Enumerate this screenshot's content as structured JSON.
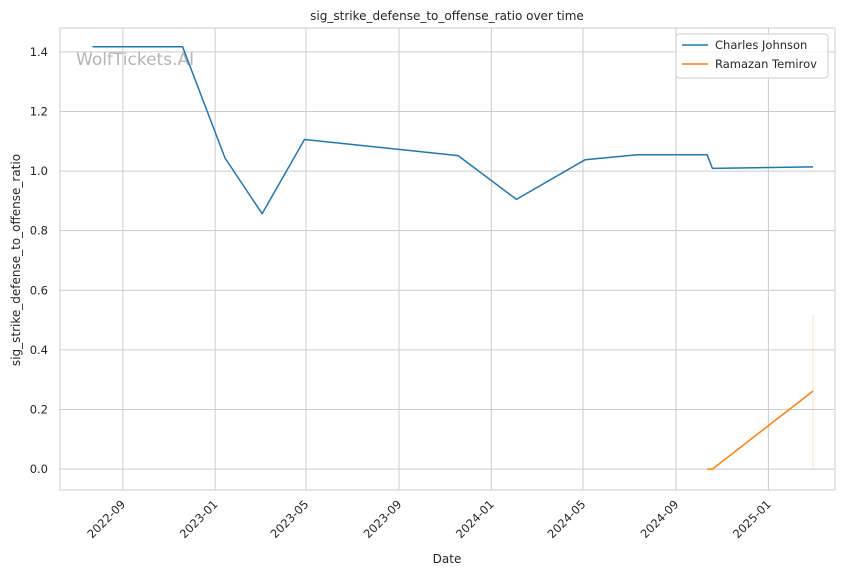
{
  "chart_data": {
    "type": "line",
    "title": "sig_strike_defense_to_offense_ratio over time",
    "xlabel": "Date",
    "ylabel": "sig_strike_defense_to_offense_ratio",
    "watermark": "WolfTickets.AI",
    "ylim": [
      -0.07,
      1.48
    ],
    "xlim": [
      "2022-06-10",
      "2025-03-30"
    ],
    "yticks": [
      0.0,
      0.2,
      0.4,
      0.6,
      0.8,
      1.0,
      1.2,
      1.4
    ],
    "ytick_labels": [
      "0.0",
      "0.2",
      "0.4",
      "0.6",
      "0.8",
      "1.0",
      "1.2",
      "1.4"
    ],
    "xticks": [
      "2022-09-01",
      "2023-01-01",
      "2023-05-01",
      "2023-09-01",
      "2024-01-01",
      "2024-05-01",
      "2024-09-01",
      "2025-01-01"
    ],
    "xtick_labels": [
      "2022-09",
      "2023-01",
      "2023-05",
      "2023-09",
      "2024-01",
      "2024-05",
      "2024-09",
      "2025-01"
    ],
    "grid": true,
    "legend_position": "top-right",
    "series": [
      {
        "name": "Charles Johnson",
        "color": "#1f77b4",
        "points": [
          [
            "2022-07-23",
            1.417
          ],
          [
            "2022-11-19",
            1.417
          ],
          [
            "2023-01-14",
            1.044
          ],
          [
            "2023-03-04",
            0.857
          ],
          [
            "2023-04-29",
            1.106
          ],
          [
            "2023-11-18",
            1.052
          ],
          [
            "2024-02-03",
            0.905
          ],
          [
            "2024-05-04",
            1.038
          ],
          [
            "2024-07-13",
            1.055
          ],
          [
            "2024-10-12",
            1.055
          ],
          [
            "2024-10-19",
            1.009
          ],
          [
            "2025-03-01",
            1.014
          ]
        ]
      },
      {
        "name": "Ramazan Temirov",
        "color": "#ff7f0e",
        "points": [
          [
            "2024-10-12",
            0.0
          ],
          [
            "2024-10-19",
            0.0
          ],
          [
            "2025-03-01",
            0.262
          ]
        ],
        "error_band": {
          "date": "2025-03-01",
          "low": 0.0,
          "high": 0.52
        }
      }
    ]
  }
}
